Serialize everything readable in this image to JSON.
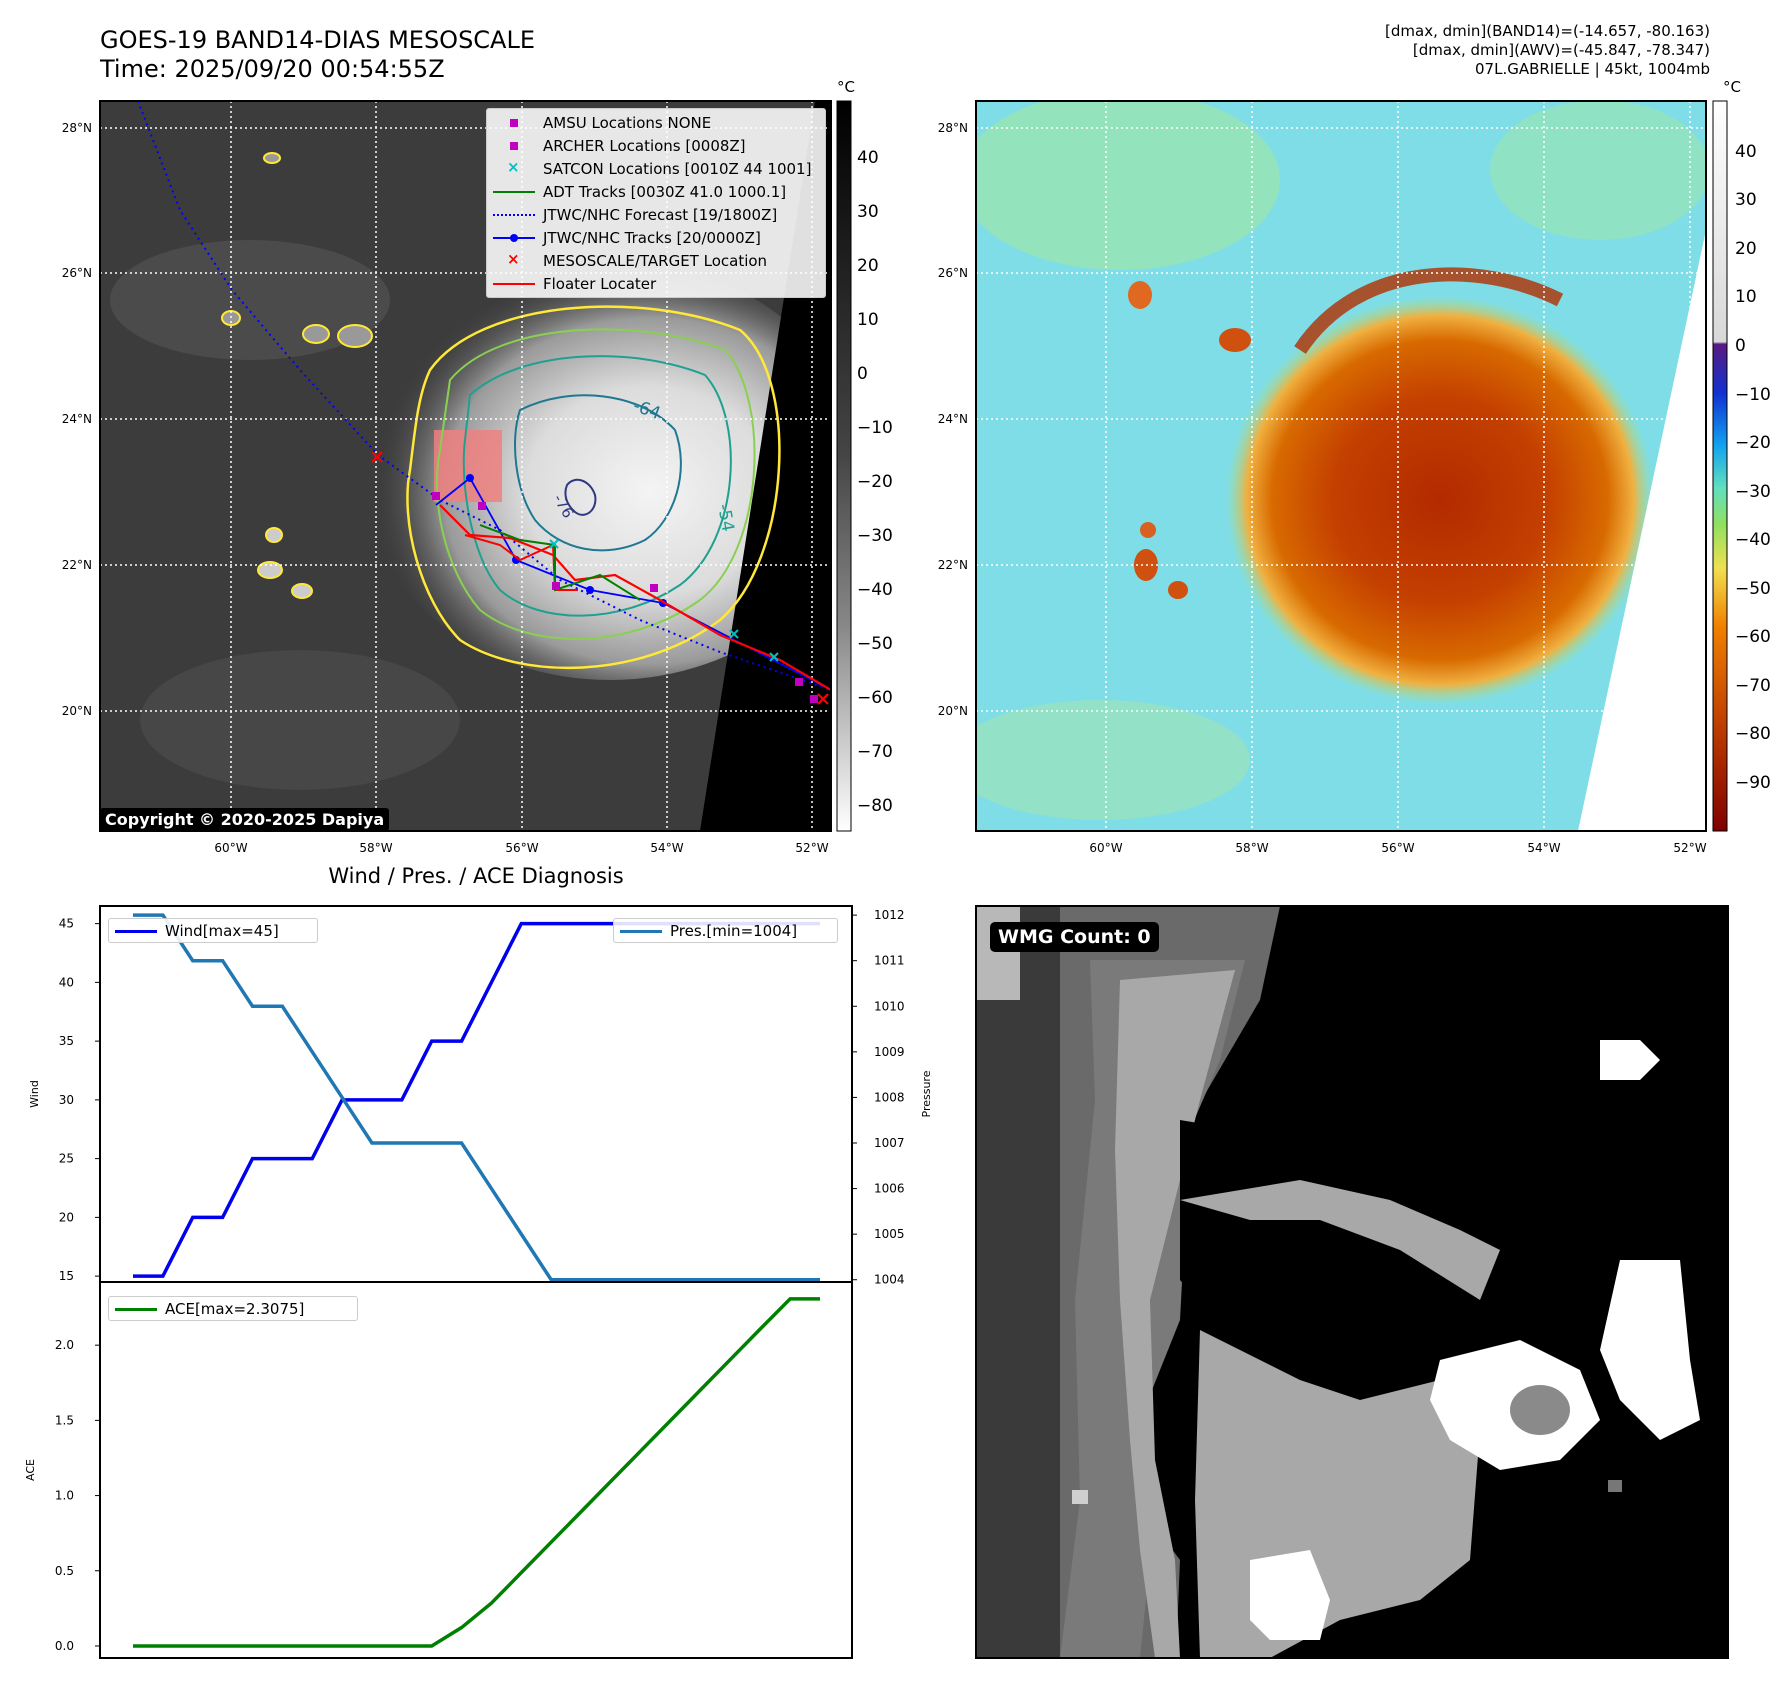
{
  "header": {
    "title_line1": "GOES-19 BAND14-DIAS MESOSCALE",
    "title_line2": "Time: 2025/09/20 00:54:55Z",
    "info_line1": "[dmax, dmin](BAND14)=(-14.657, -80.163)",
    "info_line2": "[dmax, dmin](AWV)=(-45.847, -78.347)",
    "info_line3": "07L.GABRIELLE | 45kt, 1004mb"
  },
  "map": {
    "lat_labels": [
      "28°N",
      "26°N",
      "24°N",
      "22°N",
      "20°N"
    ],
    "lon_labels": [
      "60°W",
      "58°W",
      "56°W",
      "54°W",
      "52°W"
    ],
    "contour_labels": [
      "-64",
      "-54",
      "-76"
    ],
    "copyright": "Copyright © 2020-2025 Dapiya",
    "legend": [
      {
        "label": "AMSU Locations NONE",
        "color": "#c000c0",
        "symbol": "square"
      },
      {
        "label": "ARCHER Locations [0008Z]",
        "color": "#c000c0",
        "symbol": "square"
      },
      {
        "label": "SATCON Locations [0010Z 44 1001]",
        "color": "#00c0c0",
        "symbol": "x"
      },
      {
        "label": "ADT Tracks [0030Z 41.0 1000.1]",
        "color": "#008000",
        "symbol": "line"
      },
      {
        "label": "JTWC/NHC Forecast [19/1800Z]",
        "color": "#0000ff",
        "symbol": "dotted"
      },
      {
        "label": "JTWC/NHC Tracks [20/0000Z]",
        "color": "#0000ff",
        "symbol": "line-dot"
      },
      {
        "label": "MESOSCALE/TARGET Location",
        "color": "#ff0000",
        "symbol": "x"
      },
      {
        "label": "Floater Locater",
        "color": "#ff0000",
        "symbol": "line"
      }
    ]
  },
  "colorbar_gray": {
    "unit": "°C",
    "ticks": [
      "40",
      "30",
      "20",
      "10",
      "0",
      "−10",
      "−20",
      "−30",
      "−40",
      "−50",
      "−60",
      "−70",
      "−80"
    ]
  },
  "colorbar_color": {
    "unit": "°C",
    "ticks": [
      "40",
      "30",
      "20",
      "10",
      "0",
      "−10",
      "−20",
      "−30",
      "−40",
      "−50",
      "−60",
      "−70",
      "−80",
      "−90"
    ]
  },
  "diagnosis_title": "Wind / Pres. / ACE Diagnosis",
  "wmg_label": "WMG Count: 0",
  "chart_data": [
    {
      "type": "line",
      "title": "Wind / Pres. / ACE Diagnosis",
      "ylabel": "Wind",
      "y2label": "Pressure",
      "ylim": [
        14.5,
        46.5
      ],
      "y2lim": [
        1003.95,
        1012.2
      ],
      "yticks": [
        15,
        20,
        25,
        30,
        35,
        40,
        45
      ],
      "y2ticks": [
        1004,
        1005,
        1006,
        1007,
        1008,
        1009,
        1010,
        1011,
        1012
      ],
      "x": [
        0,
        1,
        2,
        3,
        4,
        5,
        6,
        7,
        8,
        9,
        10,
        11,
        12,
        13,
        14,
        15,
        16,
        17,
        18,
        19,
        20,
        21,
        22,
        23
      ],
      "series": [
        {
          "name": "Wind[max=45]",
          "axis": "left",
          "color": "#0000ee",
          "values": [
            15,
            15,
            20,
            20,
            25,
            25,
            25,
            30,
            30,
            30,
            35,
            35,
            40,
            45,
            45,
            45,
            45,
            45,
            45,
            45,
            45,
            45,
            45,
            45
          ]
        },
        {
          "name": "Pres.[min=1004]",
          "axis": "right",
          "color": "#1f77b4",
          "values": [
            1012,
            1012,
            1011,
            1011,
            1010,
            1010,
            1009,
            1008,
            1007,
            1007,
            1007,
            1007,
            1006,
            1005,
            1004,
            1004,
            1004,
            1004,
            1004,
            1004,
            1004,
            1004,
            1004,
            1004
          ]
        }
      ]
    },
    {
      "type": "line",
      "ylabel": "ACE",
      "ylim": [
        -0.08,
        2.42
      ],
      "yticks": [
        "0.0",
        "0.5",
        "1.0",
        "1.5",
        "2.0"
      ],
      "x": [
        0,
        1,
        2,
        3,
        4,
        5,
        6,
        7,
        8,
        9,
        10,
        11,
        12,
        13,
        14,
        15,
        16,
        17,
        18,
        19,
        20,
        21,
        22,
        23
      ],
      "series": [
        {
          "name": "ACE[max=2.3075]",
          "color": "#008000",
          "values": [
            0,
            0,
            0,
            0,
            0,
            0,
            0,
            0,
            0,
            0,
            0,
            0.1225,
            0.285,
            0.4875,
            0.69,
            0.8925,
            1.095,
            1.2975,
            1.5,
            1.7025,
            1.905,
            2.1075,
            2.3075,
            2.3075
          ]
        }
      ]
    }
  ]
}
